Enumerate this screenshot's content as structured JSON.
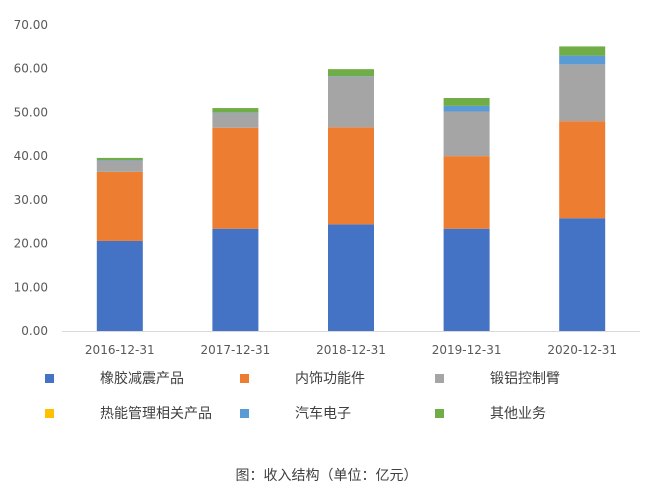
{
  "chart_data": {
    "type": "bar",
    "stacked": true,
    "categories": [
      "2016-12-31",
      "2017-12-31",
      "2018-12-31",
      "2019-12-31",
      "2020-12-31"
    ],
    "series": [
      {
        "name": "橡胶减震产品",
        "color": "#4472C4",
        "values": [
          20.6,
          23.4,
          24.4,
          23.4,
          25.8
        ]
      },
      {
        "name": "内饰功能件",
        "color": "#ED7D31",
        "values": [
          15.8,
          23.1,
          22.2,
          16.6,
          22.2
        ]
      },
      {
        "name": "锻铝控制臂",
        "color": "#A5A5A5",
        "values": [
          2.6,
          3.4,
          11.6,
          10.2,
          13.0
        ]
      },
      {
        "name": "热能管理相关产品",
        "color": "#FFC000",
        "values": [
          0,
          0,
          0,
          0,
          0
        ]
      },
      {
        "name": "汽车电子",
        "color": "#5B9BD5",
        "values": [
          0.1,
          0.1,
          0.1,
          1.3,
          2.0
        ]
      },
      {
        "name": "其他业务",
        "color": "#70AD47",
        "values": [
          0.5,
          1.0,
          1.6,
          1.8,
          2.1
        ]
      }
    ],
    "yticks": [
      "0.00",
      "10.00",
      "20.00",
      "30.00",
      "40.00",
      "50.00",
      "60.00",
      "70.00"
    ],
    "ylim": [
      0,
      70
    ],
    "legend_position": "bottom",
    "caption": "图：收入结构（单位：亿元）"
  }
}
